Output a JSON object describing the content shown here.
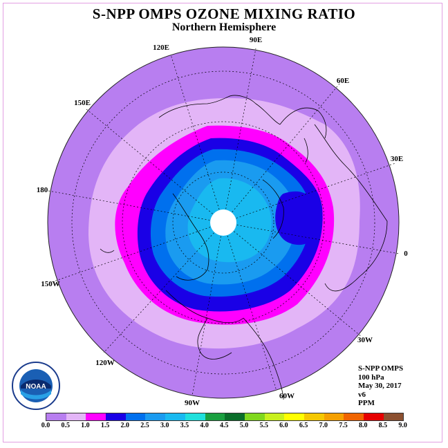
{
  "title": "S-NPP OMPS OZONE MIXING RATIO",
  "subtitle": "Northern Hemisphere",
  "longitude_labels": [
    "90E",
    "60E",
    "30E",
    "0",
    "30W",
    "60W",
    "90W",
    "120W",
    "150W",
    "180",
    "150E",
    "120E"
  ],
  "info": [
    "S-NPP OMPS",
    "100 hPa",
    "May 30, 2017",
    "v6",
    "PPM"
  ],
  "colorbar": {
    "ticks": [
      "0.0",
      "0.5",
      "1.0",
      "1.5",
      "2.0",
      "2.5",
      "3.0",
      "3.5",
      "4.0",
      "4.5",
      "5.0",
      "5.5",
      "6.0",
      "6.5",
      "7.0",
      "7.5",
      "8.0",
      "8.5",
      "9.0"
    ],
    "colors": [
      "#b87ef0",
      "#e3b5f7",
      "#ff00ff",
      "#1a00e6",
      "#0070ee",
      "#1a9bf0",
      "#19b9f0",
      "#20e0dc",
      "#1aa040",
      "#0a6e2a",
      "#80d81e",
      "#c8f01e",
      "#ffff00",
      "#f5c800",
      "#f5a000",
      "#f06400",
      "#e60000",
      "#8c5030"
    ]
  },
  "logo_text": "NOAA"
}
